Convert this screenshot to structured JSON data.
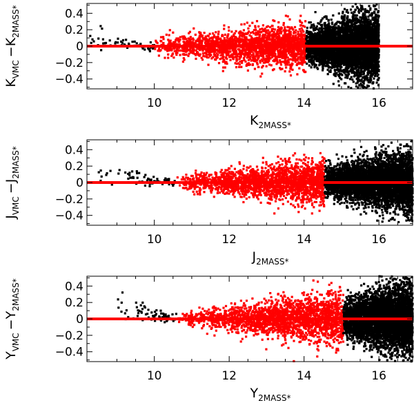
{
  "chart_data": [
    {
      "type": "scatter",
      "panel": "top",
      "xlim": [
        8.2,
        16.9
      ],
      "ylim": [
        -0.52,
        0.52
      ],
      "x_ticks": [
        10,
        12,
        14,
        16
      ],
      "y_ticks": [
        -0.4,
        -0.2,
        0,
        0.2,
        0.4
      ],
      "x_tick_labels": [
        "10",
        "12",
        "14",
        "16"
      ],
      "y_tick_labels": [
        "−0.4",
        "−0.2",
        "0",
        "0.2",
        "0.4"
      ],
      "xlabel": {
        "main": "K",
        "sub": "2MASS*"
      },
      "ylabel": {
        "p1": "K",
        "s1": "VMC",
        "op": "−K",
        "s2": "2MASS*"
      },
      "zero_line": 0,
      "colors": {
        "black": "#000000",
        "red": "#ff0000"
      },
      "series": [
        {
          "color": "black",
          "x_range": [
            8.2,
            10.0
          ],
          "scatter_bright": 0.25,
          "scatter_faint": 0.05,
          "density": 60
        },
        {
          "color": "red",
          "x_range": [
            10.0,
            14.05
          ],
          "scatter_bright": 0.1,
          "scatter_faint": 0.25,
          "density": 2000
        },
        {
          "color": "black",
          "x_range": [
            14.05,
            16.0
          ],
          "scatter_bright": 0.18,
          "scatter_faint": 0.4,
          "density": 4500
        }
      ]
    },
    {
      "type": "scatter",
      "panel": "middle",
      "xlim": [
        8.2,
        16.9
      ],
      "ylim": [
        -0.52,
        0.52
      ],
      "x_ticks": [
        10,
        12,
        14,
        16
      ],
      "y_ticks": [
        -0.4,
        -0.2,
        0,
        0.2,
        0.4
      ],
      "x_tick_labels": [
        "10",
        "12",
        "14",
        "16"
      ],
      "y_tick_labels": [
        "−0.4",
        "−0.2",
        "0",
        "0.2",
        "0.4"
      ],
      "xlabel": {
        "main": "J",
        "sub": "2MASS*"
      },
      "ylabel": {
        "p1": "J",
        "s1": "VMC",
        "op": "−J",
        "s2": "2MASS*"
      },
      "zero_line": 0,
      "colors": {
        "black": "#000000",
        "red": "#ff0000"
      },
      "series": [
        {
          "color": "black",
          "x_range": [
            8.4,
            10.6
          ],
          "scatter_bright": 0.45,
          "scatter_faint": 0.05,
          "density": 70
        },
        {
          "color": "red",
          "x_range": [
            10.6,
            14.55
          ],
          "scatter_bright": 0.08,
          "scatter_faint": 0.25,
          "density": 2000
        },
        {
          "color": "black",
          "x_range": [
            14.55,
            16.9
          ],
          "scatter_bright": 0.15,
          "scatter_faint": 0.35,
          "density": 4500
        }
      ]
    },
    {
      "type": "scatter",
      "panel": "bottom",
      "xlim": [
        8.2,
        16.9
      ],
      "ylim": [
        -0.52,
        0.52
      ],
      "x_ticks": [
        10,
        12,
        14,
        16
      ],
      "y_ticks": [
        -0.4,
        -0.2,
        0,
        0.2,
        0.4
      ],
      "x_tick_labels": [
        "10",
        "12",
        "14",
        "16"
      ],
      "y_tick_labels": [
        "−0.4",
        "−0.2",
        "0",
        "0.2",
        "0.4"
      ],
      "xlabel": {
        "main": "Y",
        "sub": "2MASS*"
      },
      "ylabel": {
        "p1": "Y",
        "s1": "VMC",
        "op": "−Y",
        "s2": "2MASS*"
      },
      "zero_line": 0,
      "colors": {
        "black": "#000000",
        "red": "#ff0000"
      },
      "series": [
        {
          "color": "black",
          "x_range": [
            9.0,
            10.6
          ],
          "scatter_bright": 0.5,
          "scatter_faint": 0.05,
          "density": 70
        },
        {
          "color": "red",
          "x_range": [
            10.6,
            15.05
          ],
          "scatter_bright": 0.06,
          "scatter_faint": 0.3,
          "density": 2200
        },
        {
          "color": "black",
          "x_range": [
            15.05,
            16.9
          ],
          "scatter_bright": 0.2,
          "scatter_faint": 0.4,
          "density": 4500
        }
      ]
    }
  ]
}
